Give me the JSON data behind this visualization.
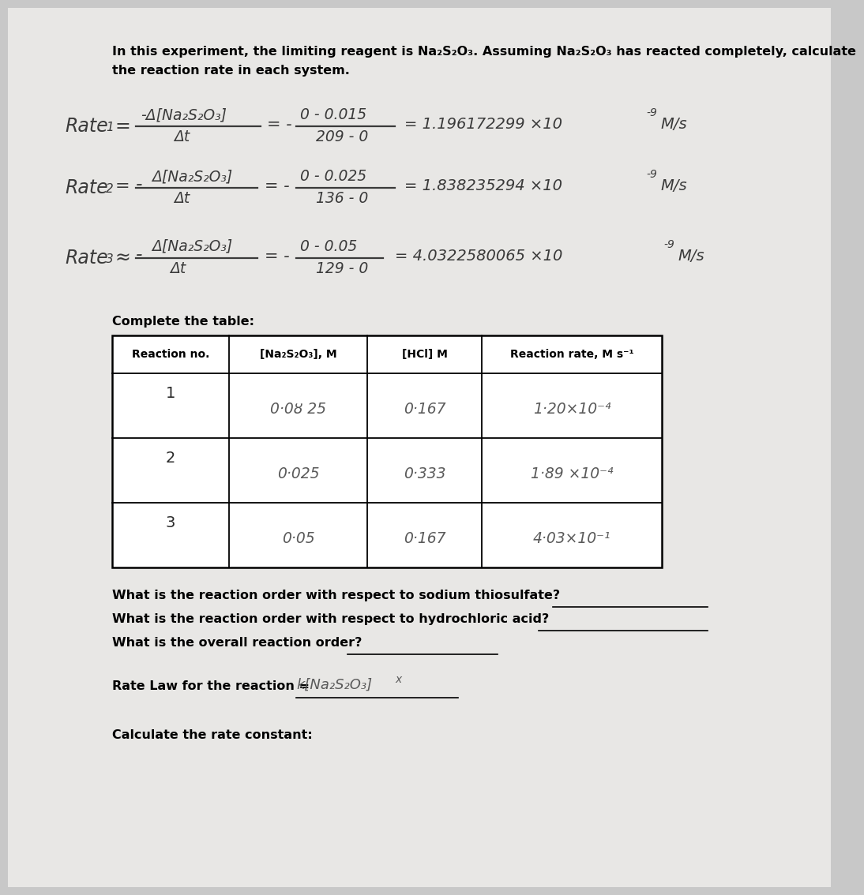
{
  "bg_color": "#c8c8c8",
  "page_color": "#e8e7e5",
  "intro_line1": "In this experiment, the limiting reagent is Na₂S₂O₃. Assuming Na₂S₂O₃ has reacted completely, calculate",
  "intro_line2": "the reaction rate in each system.",
  "table_headers": [
    "Reaction no.",
    "[Na₂S₂O₃], M",
    "[HCl] M",
    "Reaction rate, M s⁻¹"
  ],
  "row1_no": "1",
  "row1_na": "0·0ȣ 25",
  "row1_hcl": "0·167",
  "row1_rate": "1·20×10⁻⁴",
  "row2_no": "2",
  "row2_na": "0·025",
  "row2_hcl": "0·333",
  "row2_rate": "1·89 ×10⁻⁴",
  "row3_no": "3",
  "row3_na": "0·05",
  "row3_hcl": "0·167",
  "row3_rate": "4·03×10⁻¹",
  "q1": "What is the reaction order with respect to sodium thiosulfate?",
  "q2": "What is the reaction order with respect to hydrochloric acid?",
  "q3": "What is the overall reaction order?",
  "rate_law_label": "Rate Law for the reaction =",
  "calc_rate_label": "Calculate the rate constant:"
}
